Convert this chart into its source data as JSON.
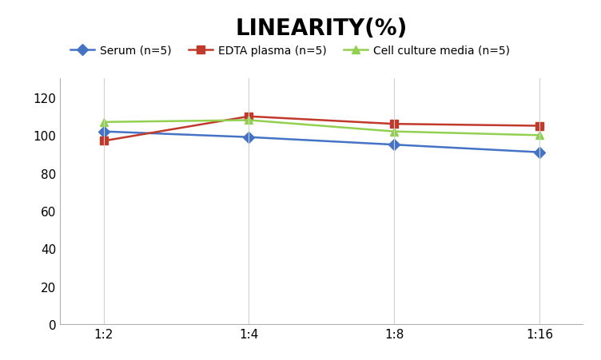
{
  "title": "LINEARITY(%)",
  "x_labels": [
    "1:2",
    "1:4",
    "1:8",
    "1:16"
  ],
  "x_positions": [
    0,
    1,
    2,
    3
  ],
  "series": [
    {
      "label": "Serum (n=5)",
      "values": [
        102,
        99,
        95,
        91
      ],
      "color": "#4472C4",
      "marker": "D",
      "markersize": 7,
      "linewidth": 1.8
    },
    {
      "label": "EDTA plasma (n=5)",
      "values": [
        97,
        110,
        106,
        105
      ],
      "color": "#C0392B",
      "marker": "s",
      "markersize": 7,
      "linewidth": 1.8
    },
    {
      "label": "Cell culture media (n=5)",
      "values": [
        107,
        108,
        102,
        100
      ],
      "color": "#92D050",
      "marker": "^",
      "markersize": 7,
      "linewidth": 1.8
    }
  ],
  "ylim": [
    0,
    130
  ],
  "yticks": [
    0,
    20,
    40,
    60,
    80,
    100,
    120
  ],
  "title_fontsize": 20,
  "title_fontweight": "bold",
  "legend_fontsize": 10,
  "tick_fontsize": 11,
  "background_color": "#ffffff",
  "grid_color": "#d0d0d0"
}
